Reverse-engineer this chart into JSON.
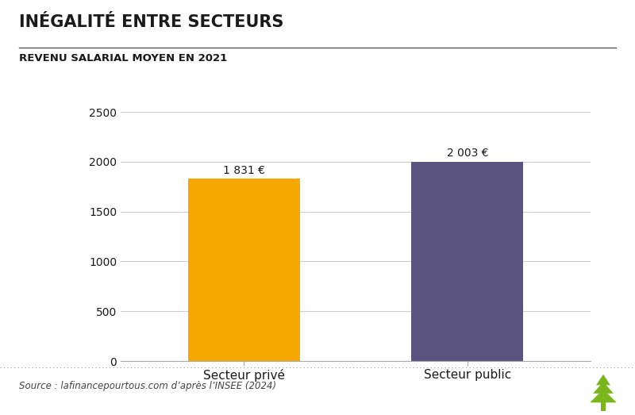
{
  "title": "INÉGALITÉ ENTRE SECTEURS",
  "subtitle": "REVENU SALARIAL MOYEN EN 2021",
  "categories": [
    "Secteur privé",
    "Secteur public"
  ],
  "values": [
    1831,
    2003
  ],
  "bar_colors": [
    "#F5A800",
    "#5B5480"
  ],
  "bar_labels": [
    "1 831 €",
    "2 003 €"
  ],
  "ylim": [
    0,
    2500
  ],
  "yticks": [
    0,
    500,
    1000,
    1500,
    2000,
    2500
  ],
  "background_color": "#FFFFFF",
  "source_text": "Source : lafinancepourtous.com d’après l’INSEE (2024)",
  "title_fontsize": 15,
  "subtitle_fontsize": 9.5,
  "bar_label_fontsize": 10,
  "xtick_fontsize": 11,
  "ytick_fontsize": 10,
  "grid_color": "#CCCCCC",
  "axis_line_color": "#AAAAAA",
  "source_fontsize": 8.5,
  "title_color": "#1a1a1a",
  "tree_color": "#7ab51d"
}
